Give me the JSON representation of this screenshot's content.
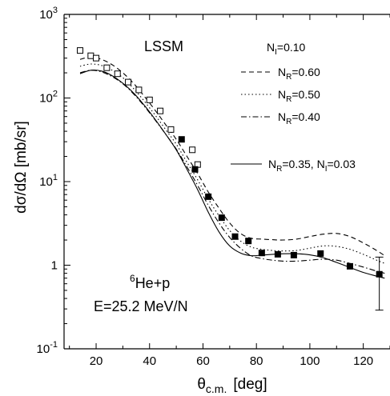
{
  "chart_data": {
    "type": "line",
    "xlabel": "θ",
    "xlabel_sub": "c.m.",
    "xlabel_unit": "[deg]",
    "ylabel": "dσ/dΩ [mb/sr]",
    "xlim": [
      8,
      130
    ],
    "ylim": [
      0.1,
      1000
    ],
    "yscale": "log",
    "x_ticks": [
      {
        "v": 20,
        "label": "20"
      },
      {
        "v": 40,
        "label": "40"
      },
      {
        "v": 60,
        "label": "60"
      },
      {
        "v": 80,
        "label": "80"
      },
      {
        "v": 100,
        "label": "100"
      },
      {
        "v": 120,
        "label": "120"
      }
    ],
    "y_ticks": [
      {
        "v": 0.1,
        "base": "10",
        "exp": "-1"
      },
      {
        "v": 1,
        "base": "1",
        "exp": ""
      },
      {
        "v": 10,
        "base": "10",
        "exp": "1"
      },
      {
        "v": 100,
        "base": "10",
        "exp": "2"
      },
      {
        "v": 1000,
        "base": "10",
        "exp": "3"
      }
    ],
    "annotations": {
      "model": "LSSM",
      "ni_header": {
        "prefix": "N",
        "sub": "I",
        "rest": "=0.10"
      },
      "reaction": {
        "sup": "6",
        "text": "He+p"
      },
      "energy": "E=25.2 MeV/N"
    },
    "series": [
      {
        "style": "dash",
        "legend": {
          "prefix": "N",
          "sub": "R",
          "rest": "=0.60"
        },
        "x": [
          14,
          18,
          22,
          26,
          30,
          34,
          38,
          42,
          46,
          50,
          54,
          58,
          62,
          66,
          70,
          74,
          78,
          82,
          86,
          90,
          95,
          100,
          105,
          110,
          115,
          120,
          125,
          128
        ],
        "y": [
          290,
          310,
          290,
          250,
          200,
          150,
          105,
          72,
          48,
          32,
          20,
          12.5,
          7.5,
          4.8,
          3.2,
          2.4,
          2.1,
          2.05,
          2.02,
          2.0,
          2.05,
          2.2,
          2.35,
          2.4,
          2.2,
          1.85,
          1.5,
          1.3
        ]
      },
      {
        "style": "dot",
        "legend": {
          "prefix": "N",
          "sub": "R",
          "rest": "=0.50"
        },
        "x": [
          14,
          18,
          22,
          26,
          30,
          34,
          38,
          42,
          46,
          50,
          54,
          58,
          62,
          66,
          70,
          74,
          78,
          82,
          86,
          90,
          95,
          100,
          105,
          110,
          115,
          120,
          125,
          128
        ],
        "y": [
          240,
          255,
          245,
          215,
          175,
          130,
          92,
          63,
          42,
          28,
          17,
          10.5,
          6.2,
          3.9,
          2.6,
          1.95,
          1.65,
          1.55,
          1.5,
          1.48,
          1.5,
          1.6,
          1.7,
          1.68,
          1.55,
          1.35,
          1.15,
          1.05
        ]
      },
      {
        "style": "dashdot",
        "legend": {
          "prefix": "N",
          "sub": "R",
          "rest": "=0.40"
        },
        "x": [
          14,
          18,
          22,
          26,
          30,
          34,
          38,
          42,
          46,
          50,
          54,
          58,
          62,
          66,
          70,
          74,
          78,
          82,
          86,
          90,
          95,
          100,
          105,
          110,
          115,
          120,
          125,
          128
        ],
        "y": [
          200,
          215,
          205,
          180,
          148,
          112,
          80,
          55,
          37,
          24.5,
          15,
          9,
          5.2,
          3.2,
          2.15,
          1.6,
          1.3,
          1.2,
          1.15,
          1.12,
          1.12,
          1.15,
          1.18,
          1.15,
          1.05,
          0.95,
          0.85,
          0.8
        ]
      },
      {
        "style": "solid",
        "legend": {
          "prefix": "N",
          "sub": "R",
          "rest": "=0.35, N",
          "sub2": "I",
          "rest2": "=0.03"
        },
        "x": [
          14,
          18,
          22,
          26,
          30,
          34,
          38,
          42,
          46,
          50,
          54,
          58,
          62,
          66,
          70,
          74,
          78,
          82,
          86,
          90,
          95,
          100,
          105,
          110,
          115,
          120,
          125,
          128
        ],
        "y": [
          195,
          215,
          210,
          185,
          150,
          115,
          82,
          56,
          37,
          24,
          14,
          8,
          4.3,
          2.5,
          1.7,
          1.4,
          1.3,
          1.32,
          1.35,
          1.37,
          1.37,
          1.33,
          1.23,
          1.08,
          0.94,
          0.82,
          0.74,
          0.7
        ]
      }
    ],
    "data_open_squares": {
      "x": [
        14,
        18,
        20,
        24,
        28,
        32,
        36,
        40,
        44,
        48,
        56,
        58
      ],
      "y": [
        370,
        320,
        300,
        230,
        195,
        155,
        125,
        95,
        70,
        42,
        24,
        16
      ]
    },
    "data_filled_squares": {
      "x": [
        52,
        57,
        62,
        67,
        72,
        77,
        82,
        88,
        94,
        104,
        115,
        126
      ],
      "y": [
        32,
        14,
        6.6,
        3.7,
        2.2,
        1.95,
        1.4,
        1.35,
        1.32,
        1.38,
        0.97,
        0.78
      ],
      "err_low": [
        null,
        null,
        null,
        null,
        null,
        null,
        null,
        null,
        null,
        null,
        null,
        0.29
      ],
      "err_high": [
        null,
        null,
        null,
        null,
        null,
        null,
        null,
        null,
        null,
        null,
        null,
        1.25
      ]
    }
  }
}
